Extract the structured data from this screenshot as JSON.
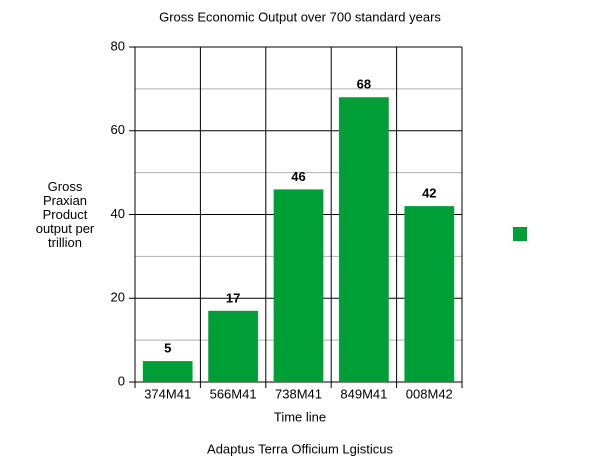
{
  "chart_data": {
    "type": "bar",
    "title": "Gross Economic Output over 700 standard years",
    "x_label": "Time line",
    "y_label": "Gross Praxian Product output per trillion",
    "footer": "Adaptus Terra Officium Lgisticus",
    "categories": [
      "374M41",
      "566M41",
      "738M41",
      "849M41",
      "008M42"
    ],
    "values": [
      5,
      17,
      46,
      68,
      42
    ],
    "color": "#009e37",
    "ylim": [
      0,
      80
    ],
    "yticks": [
      0,
      20,
      40,
      60,
      80
    ],
    "minor_yticks": [
      10,
      30,
      50,
      70
    ],
    "grid": true
  }
}
